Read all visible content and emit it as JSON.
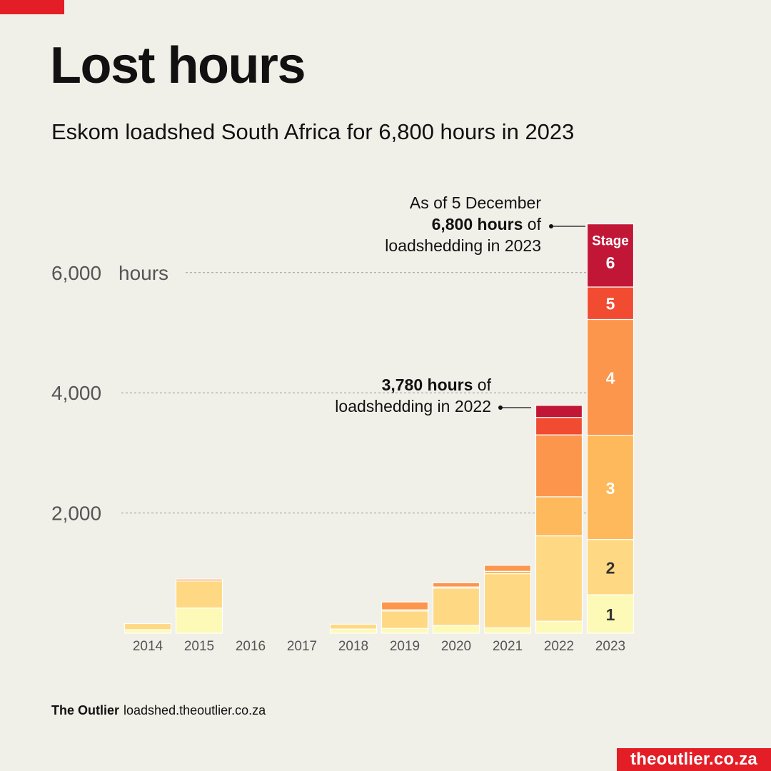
{
  "header": {
    "title": "Lost hours",
    "subtitle": "Eskom loadshed South Africa for 6,800 hours in 2023"
  },
  "footer": {
    "brand": "The Outlier",
    "url": "loadshed.theoutlier.co.za"
  },
  "badge": {
    "label": "theoutlier.co.za"
  },
  "colors": {
    "brand_red": "#e31e26",
    "background": "#f0efe8",
    "stage1": "#fdfab7",
    "stage2": "#fed883",
    "stage3": "#fdb95b",
    "stage4": "#fc964d",
    "stage5": "#f14b31",
    "stage6": "#c21637"
  },
  "annotations": {
    "a2023": {
      "line1": "As of 5 December",
      "bold": "6,800 hours",
      "after_bold": " of",
      "line3": "loadshedding in 2023"
    },
    "a2022": {
      "bold": "3,780 hours",
      "after_bold": " of",
      "line2": "loadshedding in 2022"
    }
  },
  "chart_data": {
    "type": "bar",
    "stacked": true,
    "categories": [
      "2014",
      "2015",
      "2016",
      "2017",
      "2018",
      "2019",
      "2020",
      "2021",
      "2022",
      "2023"
    ],
    "series": [
      {
        "name": "1",
        "values": [
          60,
          420,
          0,
          0,
          70,
          80,
          130,
          90,
          200,
          640
        ]
      },
      {
        "name": "2",
        "values": [
          100,
          450,
          0,
          0,
          80,
          290,
          620,
          900,
          1420,
          920
        ]
      },
      {
        "name": "3",
        "values": [
          0,
          0,
          0,
          0,
          0,
          20,
          20,
          40,
          650,
          1730
        ]
      },
      {
        "name": "4",
        "values": [
          0,
          30,
          0,
          0,
          0,
          130,
          70,
          100,
          1030,
          1930
        ]
      },
      {
        "name": "5",
        "values": [
          0,
          0,
          0,
          0,
          0,
          0,
          0,
          0,
          290,
          540
        ]
      },
      {
        "name": "6",
        "values": [
          0,
          0,
          0,
          0,
          0,
          0,
          0,
          0,
          200,
          1050
        ]
      }
    ],
    "legend_title": "Stage",
    "y_ticks": [
      2000,
      4000,
      6000
    ],
    "y_tick_labels": [
      "2,000",
      "4,000",
      "6,000"
    ],
    "y_unit_label": "hours",
    "ylim": [
      0,
      6800
    ],
    "grid": "dashed horizontal"
  }
}
